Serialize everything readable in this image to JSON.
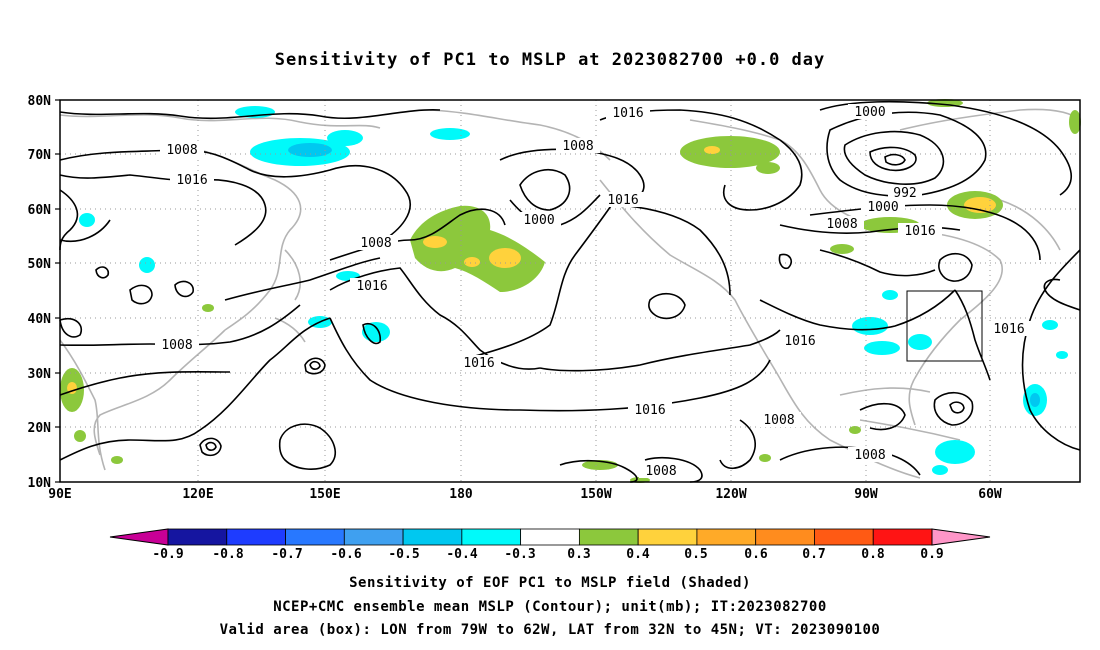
{
  "title": "Sensitivity of PC1 to MSLP at 2023082700 +0.0 day",
  "lat_labels": [
    "80N",
    "70N",
    "60N",
    "50N",
    "40N",
    "30N",
    "20N",
    "10N"
  ],
  "lon_labels": [
    "90E",
    "120E",
    "150E",
    "180",
    "150W",
    "120W",
    "90W",
    "60W"
  ],
  "contour_labels": [
    "1016",
    "1008",
    "1016",
    "1008",
    "1000",
    "1016",
    "1000",
    "992",
    "1000",
    "1008",
    "1016",
    "1008",
    "1016",
    "1016",
    "1008",
    "1016",
    "1016",
    "1008",
    "1008",
    "1008",
    "1016"
  ],
  "colorbar": {
    "labels": [
      "-0.9",
      "-0.8",
      "-0.7",
      "-0.6",
      "-0.5",
      "-0.4",
      "-0.3",
      "0.3",
      "0.4",
      "0.5",
      "0.6",
      "0.7",
      "0.8",
      "0.9"
    ],
    "colors": [
      "#1515a0",
      "#1e3cff",
      "#2878ff",
      "#3fa0f0",
      "#00c8f0",
      "#00fafa",
      "#ffffff",
      "#8cc83c",
      "#ffd23c",
      "#ffaa28",
      "#ff8c1e",
      "#ff5a14",
      "#ff1414"
    ],
    "low_end_color": "#c80096",
    "high_end_color": "#ff96c8"
  },
  "footer": {
    "line1": "Sensitivity of EOF PC1 to MSLP field (Shaded)",
    "line2": "NCEP+CMC ensemble mean MSLP (Contour); unit(mb); IT:2023082700",
    "line3": "Valid area (box): LON from 79W to 62W, LAT from 32N to 45N; VT: 2023090100"
  }
}
